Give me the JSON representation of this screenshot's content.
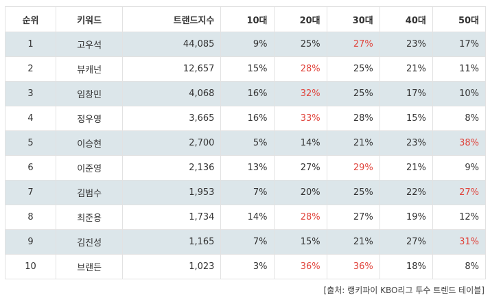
{
  "headers": {
    "rank": "순위",
    "keyword": "키워드",
    "trend": "트랜드지수",
    "age10": "10대",
    "age20": "20대",
    "age30": "30대",
    "age40": "40대",
    "age50": "50대"
  },
  "highlight_color": "#e0433b",
  "row_stripe_color": "#dce6ea",
  "rows": [
    {
      "rank": "1",
      "keyword": "고우석",
      "trend": "44,085",
      "age10": "9%",
      "age20": "25%",
      "age30": "27%",
      "age40": "23%",
      "age50": "17%",
      "highlight": "age30"
    },
    {
      "rank": "2",
      "keyword": "뷰캐넌",
      "trend": "12,657",
      "age10": "15%",
      "age20": "28%",
      "age30": "25%",
      "age40": "21%",
      "age50": "11%",
      "highlight": "age20"
    },
    {
      "rank": "3",
      "keyword": "임창민",
      "trend": "4,068",
      "age10": "16%",
      "age20": "32%",
      "age30": "25%",
      "age40": "17%",
      "age50": "10%",
      "highlight": "age20"
    },
    {
      "rank": "4",
      "keyword": "정우영",
      "trend": "3,665",
      "age10": "16%",
      "age20": "33%",
      "age30": "28%",
      "age40": "15%",
      "age50": "8%",
      "highlight": "age20"
    },
    {
      "rank": "5",
      "keyword": "이승현",
      "trend": "2,700",
      "age10": "5%",
      "age20": "14%",
      "age30": "21%",
      "age40": "23%",
      "age50": "38%",
      "highlight": "age50"
    },
    {
      "rank": "6",
      "keyword": "이준영",
      "trend": "2,136",
      "age10": "13%",
      "age20": "27%",
      "age30": "29%",
      "age40": "21%",
      "age50": "9%",
      "highlight": "age30"
    },
    {
      "rank": "7",
      "keyword": "김범수",
      "trend": "1,953",
      "age10": "7%",
      "age20": "20%",
      "age30": "25%",
      "age40": "22%",
      "age50": "27%",
      "highlight": "age50"
    },
    {
      "rank": "8",
      "keyword": "최준용",
      "trend": "1,734",
      "age10": "14%",
      "age20": "28%",
      "age30": "27%",
      "age40": "19%",
      "age50": "12%",
      "highlight": "age20"
    },
    {
      "rank": "9",
      "keyword": "김진성",
      "trend": "1,165",
      "age10": "7%",
      "age20": "15%",
      "age30": "21%",
      "age40": "27%",
      "age50": "31%",
      "highlight": "age50"
    },
    {
      "rank": "10",
      "keyword": "브랜든",
      "trend": "1,023",
      "age10": "3%",
      "age20": "36%",
      "age30": "36%",
      "age40": "18%",
      "age50": "8%",
      "highlight": [
        "age20",
        "age30"
      ]
    }
  ],
  "source": "[출처: 랭키파이 KBO리그 투수 트렌드 테이블]"
}
